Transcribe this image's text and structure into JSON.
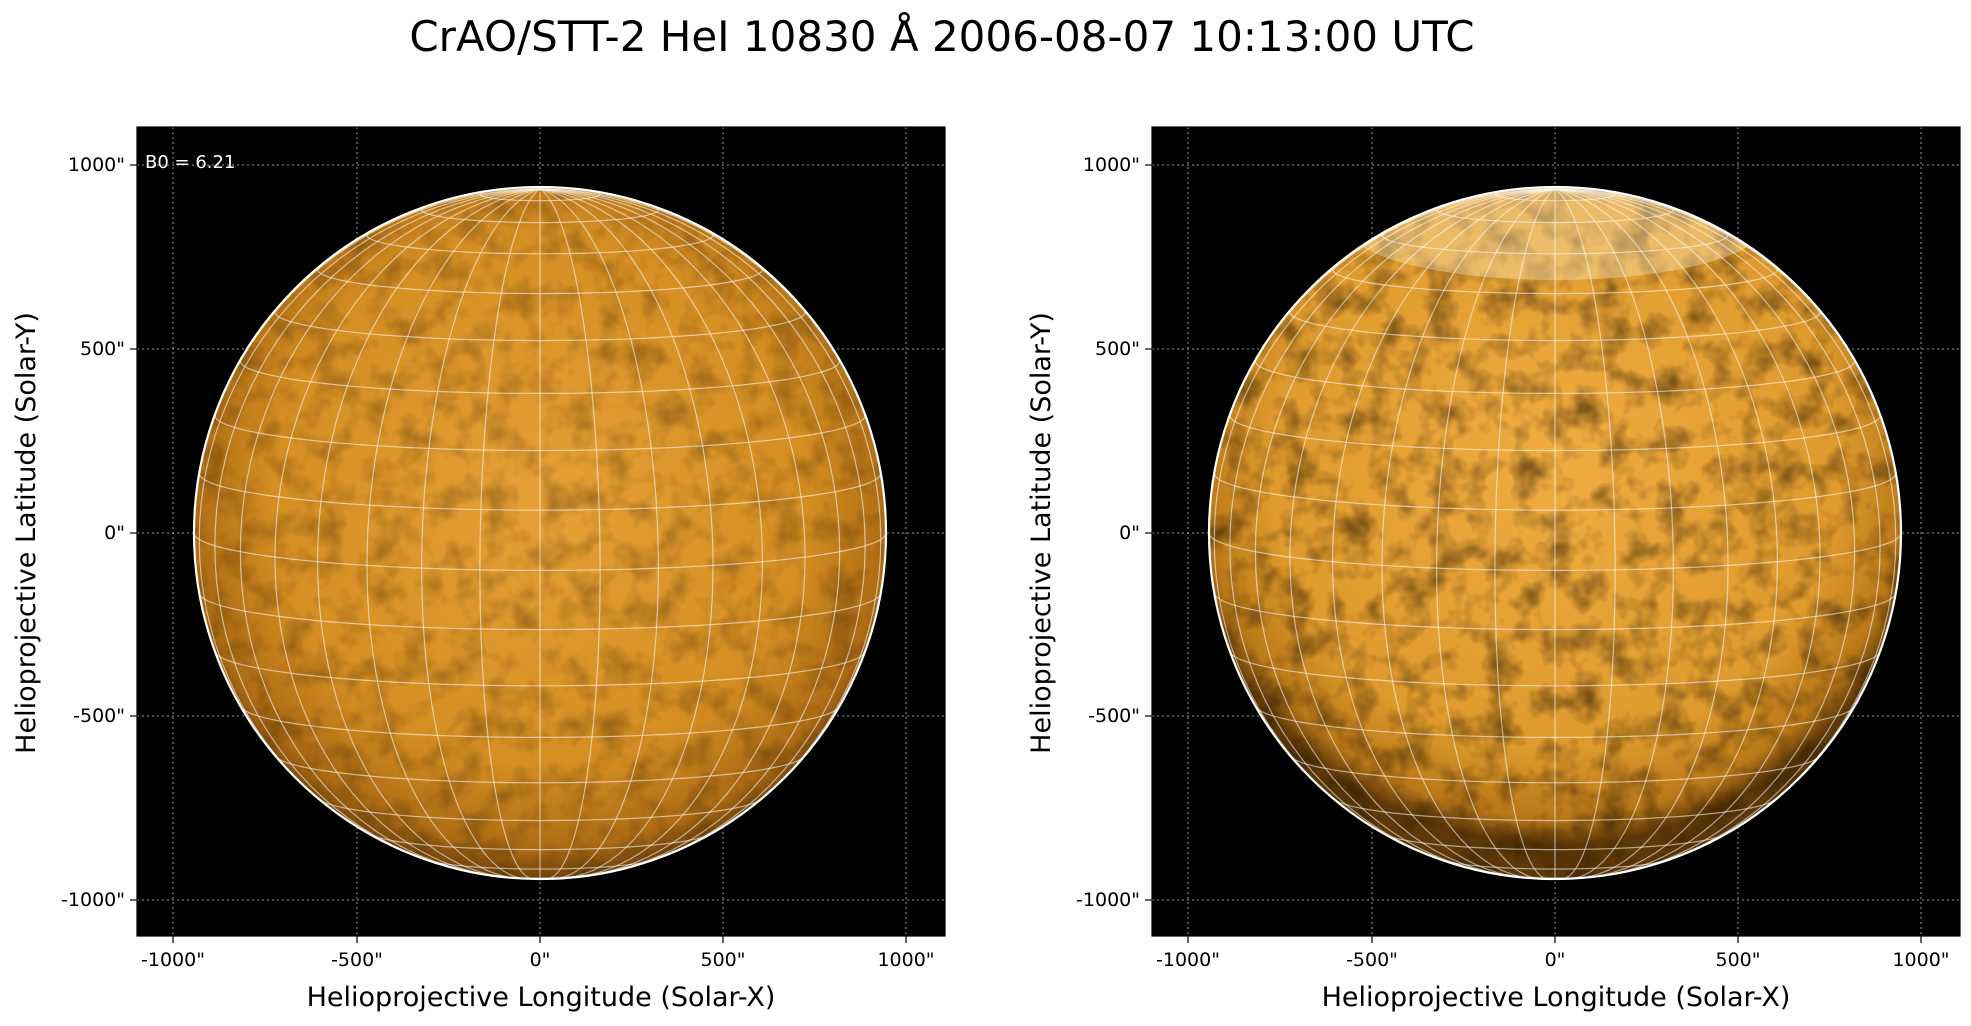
{
  "figure": {
    "title": "CrAO/STT-2 HeI 10830 Å 2006-08-07 10:13:00 UTC",
    "panels": [
      {
        "annotation": "B0 = 6.21",
        "xlabel": "Helioprojective Longitude (Solar-X)",
        "ylabel": "Helioprojective Latitude (Solar-Y)",
        "xticks": [
          "-1000\"",
          "-500\"",
          "0\"",
          "500\"",
          "1000\""
        ],
        "yticks": [
          "1000\"",
          "500\"",
          "0\"",
          "-500\"",
          "-1000\""
        ]
      },
      {
        "annotation": "",
        "xlabel": "Helioprojective Longitude (Solar-X)",
        "ylabel": "Helioprojective Latitude (Solar-Y)",
        "xticks": [
          "-1000\"",
          "-500\"",
          "0\"",
          "500\"",
          "1000\""
        ],
        "yticks": [
          "1000\"",
          "500\"",
          "0\"",
          "-500\"",
          "-1000\""
        ]
      }
    ],
    "colors": {
      "background": "#000000",
      "disk_center": "#e8a030",
      "disk_limb": "#8a5010",
      "grid": "#ffffff"
    }
  }
}
